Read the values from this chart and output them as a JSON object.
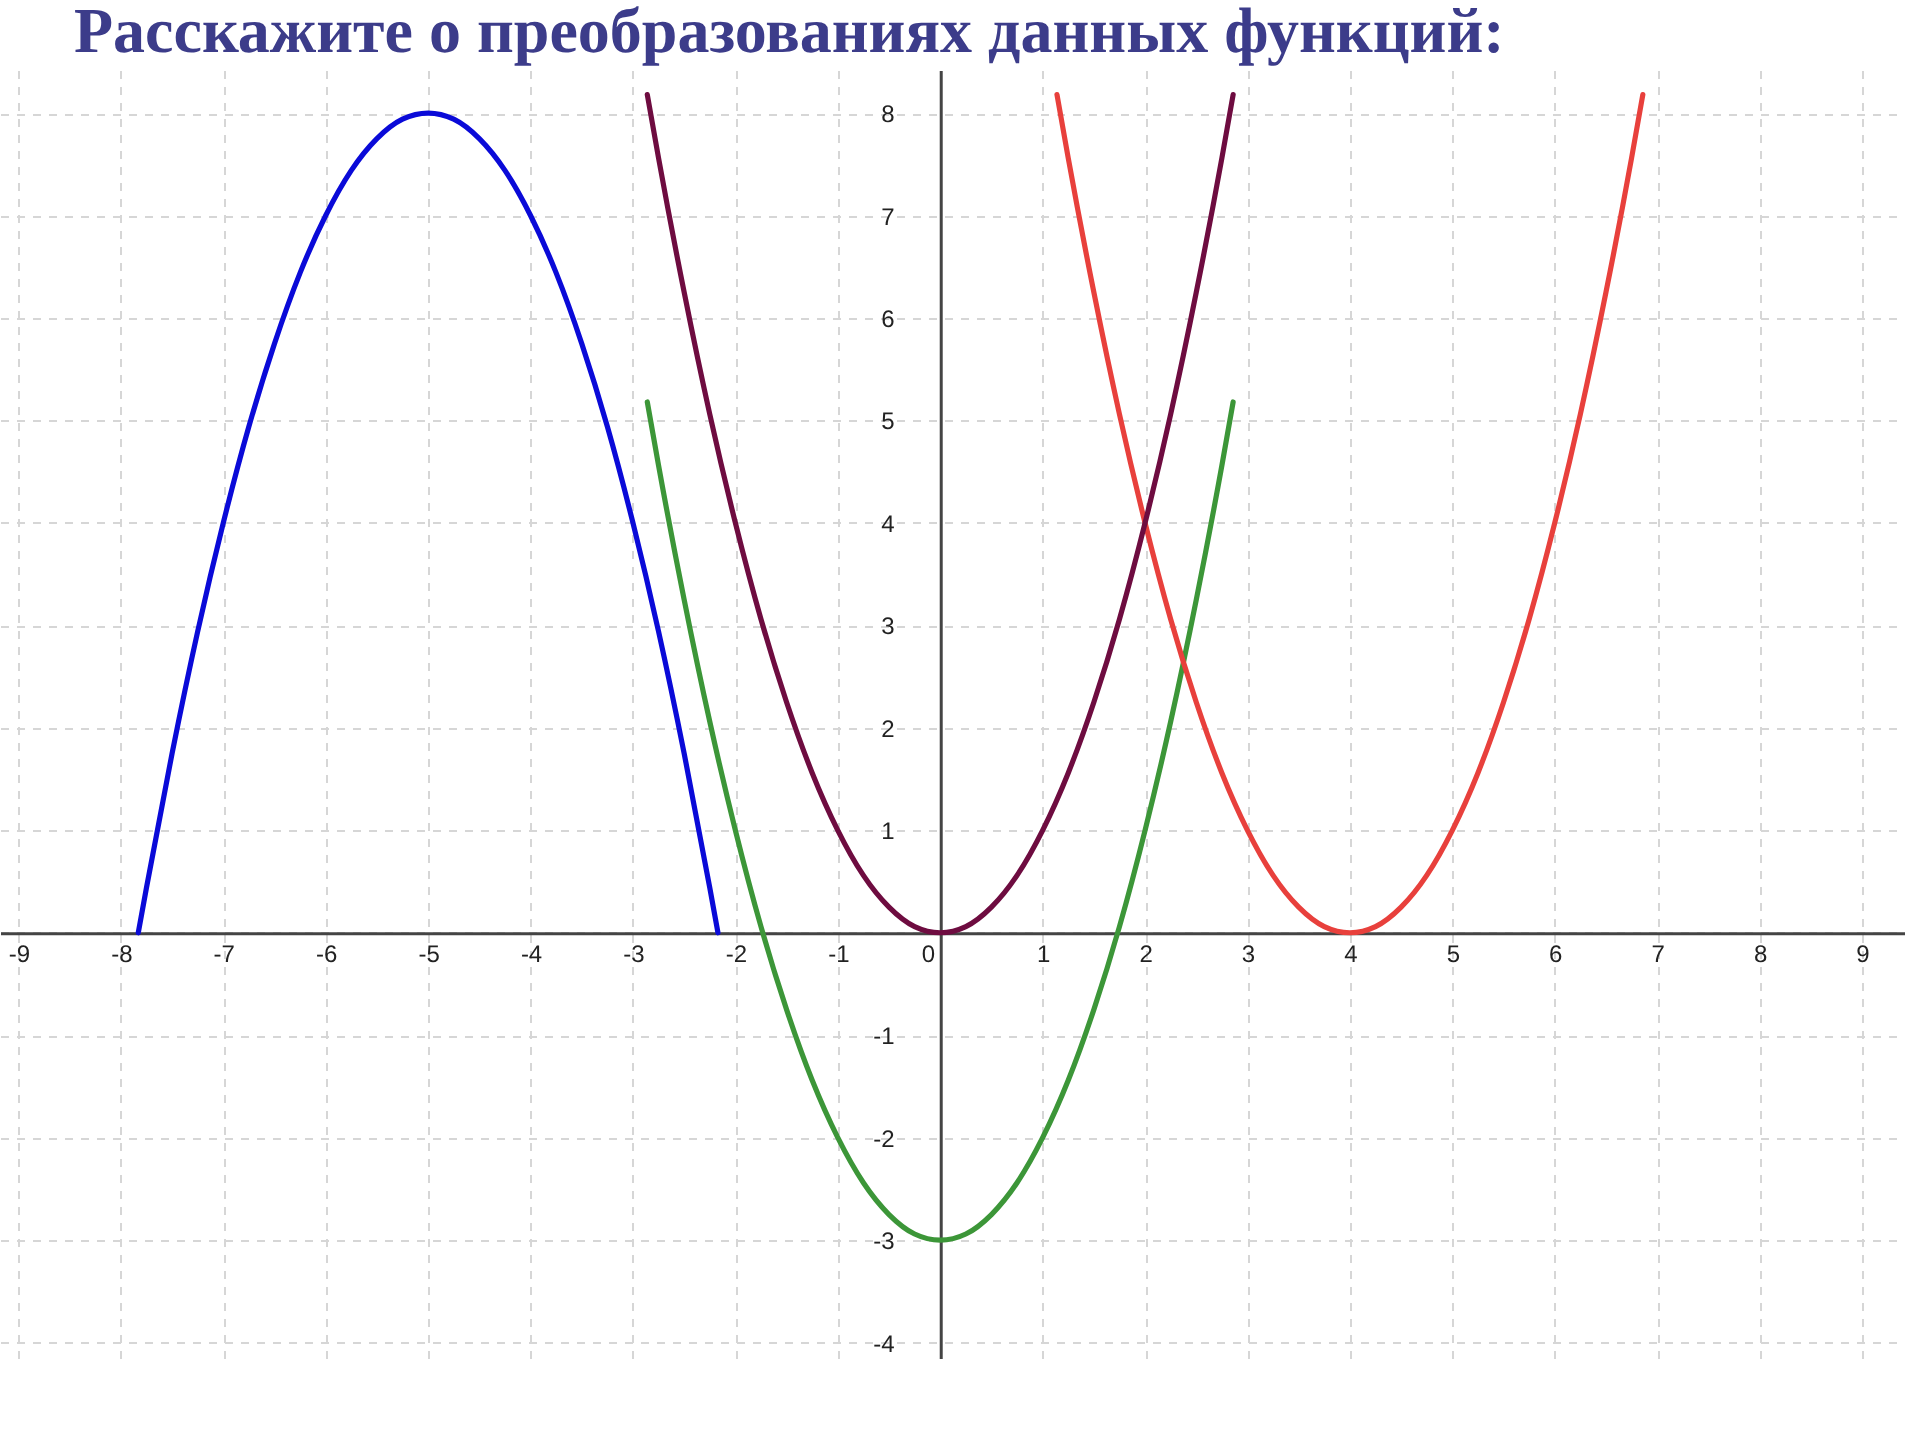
{
  "chart_data": {
    "type": "line",
    "title": "Расскажите о преобразованиях данных функций:",
    "xlim": [
      -9.18,
      9.41
    ],
    "ylim": [
      -4.15,
      8.42
    ],
    "xticks": [
      -9,
      -8,
      -7,
      -6,
      -5,
      -4,
      -3,
      -2,
      -1,
      0,
      1,
      2,
      3,
      4,
      5,
      6,
      7,
      8,
      9
    ],
    "yticks": [
      -4,
      -3,
      -2,
      -1,
      {
        "value": 0,
        "label": null
      },
      1,
      2,
      3,
      4,
      5,
      6,
      7,
      8
    ],
    "grid": true,
    "series": [
      {
        "color": "#0a0ad8",
        "x": [
          -7.83,
          -7.75,
          -7.5,
          -7.25,
          -7,
          -6.75,
          -6.5,
          -6.25,
          -6,
          -5.75,
          -5.5,
          -5.25,
          -5,
          -4.75,
          -4.5,
          -4.25,
          -4,
          -3.75,
          -3.5,
          -3.25,
          -3,
          -2.75,
          -2.5,
          -2.25,
          -2.17
        ],
        "values": [
          0,
          0.44,
          1.75,
          2.94,
          4,
          4.94,
          5.75,
          6.44,
          7,
          7.44,
          7.75,
          7.94,
          8,
          7.94,
          7.75,
          7.44,
          7,
          6.44,
          5.75,
          4.94,
          4,
          2.94,
          1.75,
          0.44,
          0
        ]
      },
      {
        "color": "#3c9638",
        "x": [
          -2.86,
          -2.75,
          -2.5,
          -2.25,
          -2,
          -1.75,
          -1.5,
          -1.25,
          -1,
          -0.75,
          -0.5,
          -0.25,
          0,
          0.25,
          0.5,
          0.75,
          1,
          1.25,
          1.5,
          1.75,
          2,
          2.25,
          2.5,
          2.75,
          2.86
        ],
        "values": [
          5.18,
          4.56,
          3.25,
          2.06,
          1,
          0.06,
          -0.75,
          -1.44,
          -2,
          -2.44,
          -2.75,
          -2.94,
          -3,
          -2.94,
          -2.75,
          -2.44,
          -2,
          -1.44,
          -0.75,
          0.06,
          1,
          2.06,
          3.25,
          4.56,
          5.18
        ]
      },
      {
        "color": "#e8403c",
        "x": [
          1.14,
          1.25,
          1.5,
          1.75,
          2,
          2.25,
          2.5,
          2.75,
          3,
          3.25,
          3.5,
          3.75,
          4,
          4.25,
          4.5,
          4.75,
          5,
          5.25,
          5.5,
          5.75,
          6,
          6.25,
          6.5,
          6.75,
          6.86
        ],
        "values": [
          8.18,
          7.56,
          6.25,
          5.06,
          4,
          3.06,
          2.25,
          1.56,
          1,
          0.56,
          0.25,
          0.06,
          0,
          0.06,
          0.25,
          0.56,
          1,
          1.56,
          2.25,
          3.06,
          4,
          5.06,
          6.25,
          7.56,
          8.18
        ]
      },
      {
        "color": "#6e0c40",
        "x": [
          -2.86,
          -2.75,
          -2.5,
          -2.25,
          -2,
          -1.75,
          -1.5,
          -1.25,
          -1,
          -0.75,
          -0.5,
          -0.25,
          0,
          0.25,
          0.5,
          0.75,
          1,
          1.25,
          1.5,
          1.75,
          2,
          2.25,
          2.5,
          2.75,
          2.86
        ],
        "values": [
          8.18,
          7.56,
          6.25,
          5.06,
          4,
          3.06,
          2.25,
          1.56,
          1,
          0.56,
          0.25,
          0.06,
          0,
          0.06,
          0.25,
          0.56,
          1,
          1.56,
          2.25,
          3.06,
          4,
          5.06,
          6.25,
          7.56,
          8.18
        ]
      }
    ]
  }
}
